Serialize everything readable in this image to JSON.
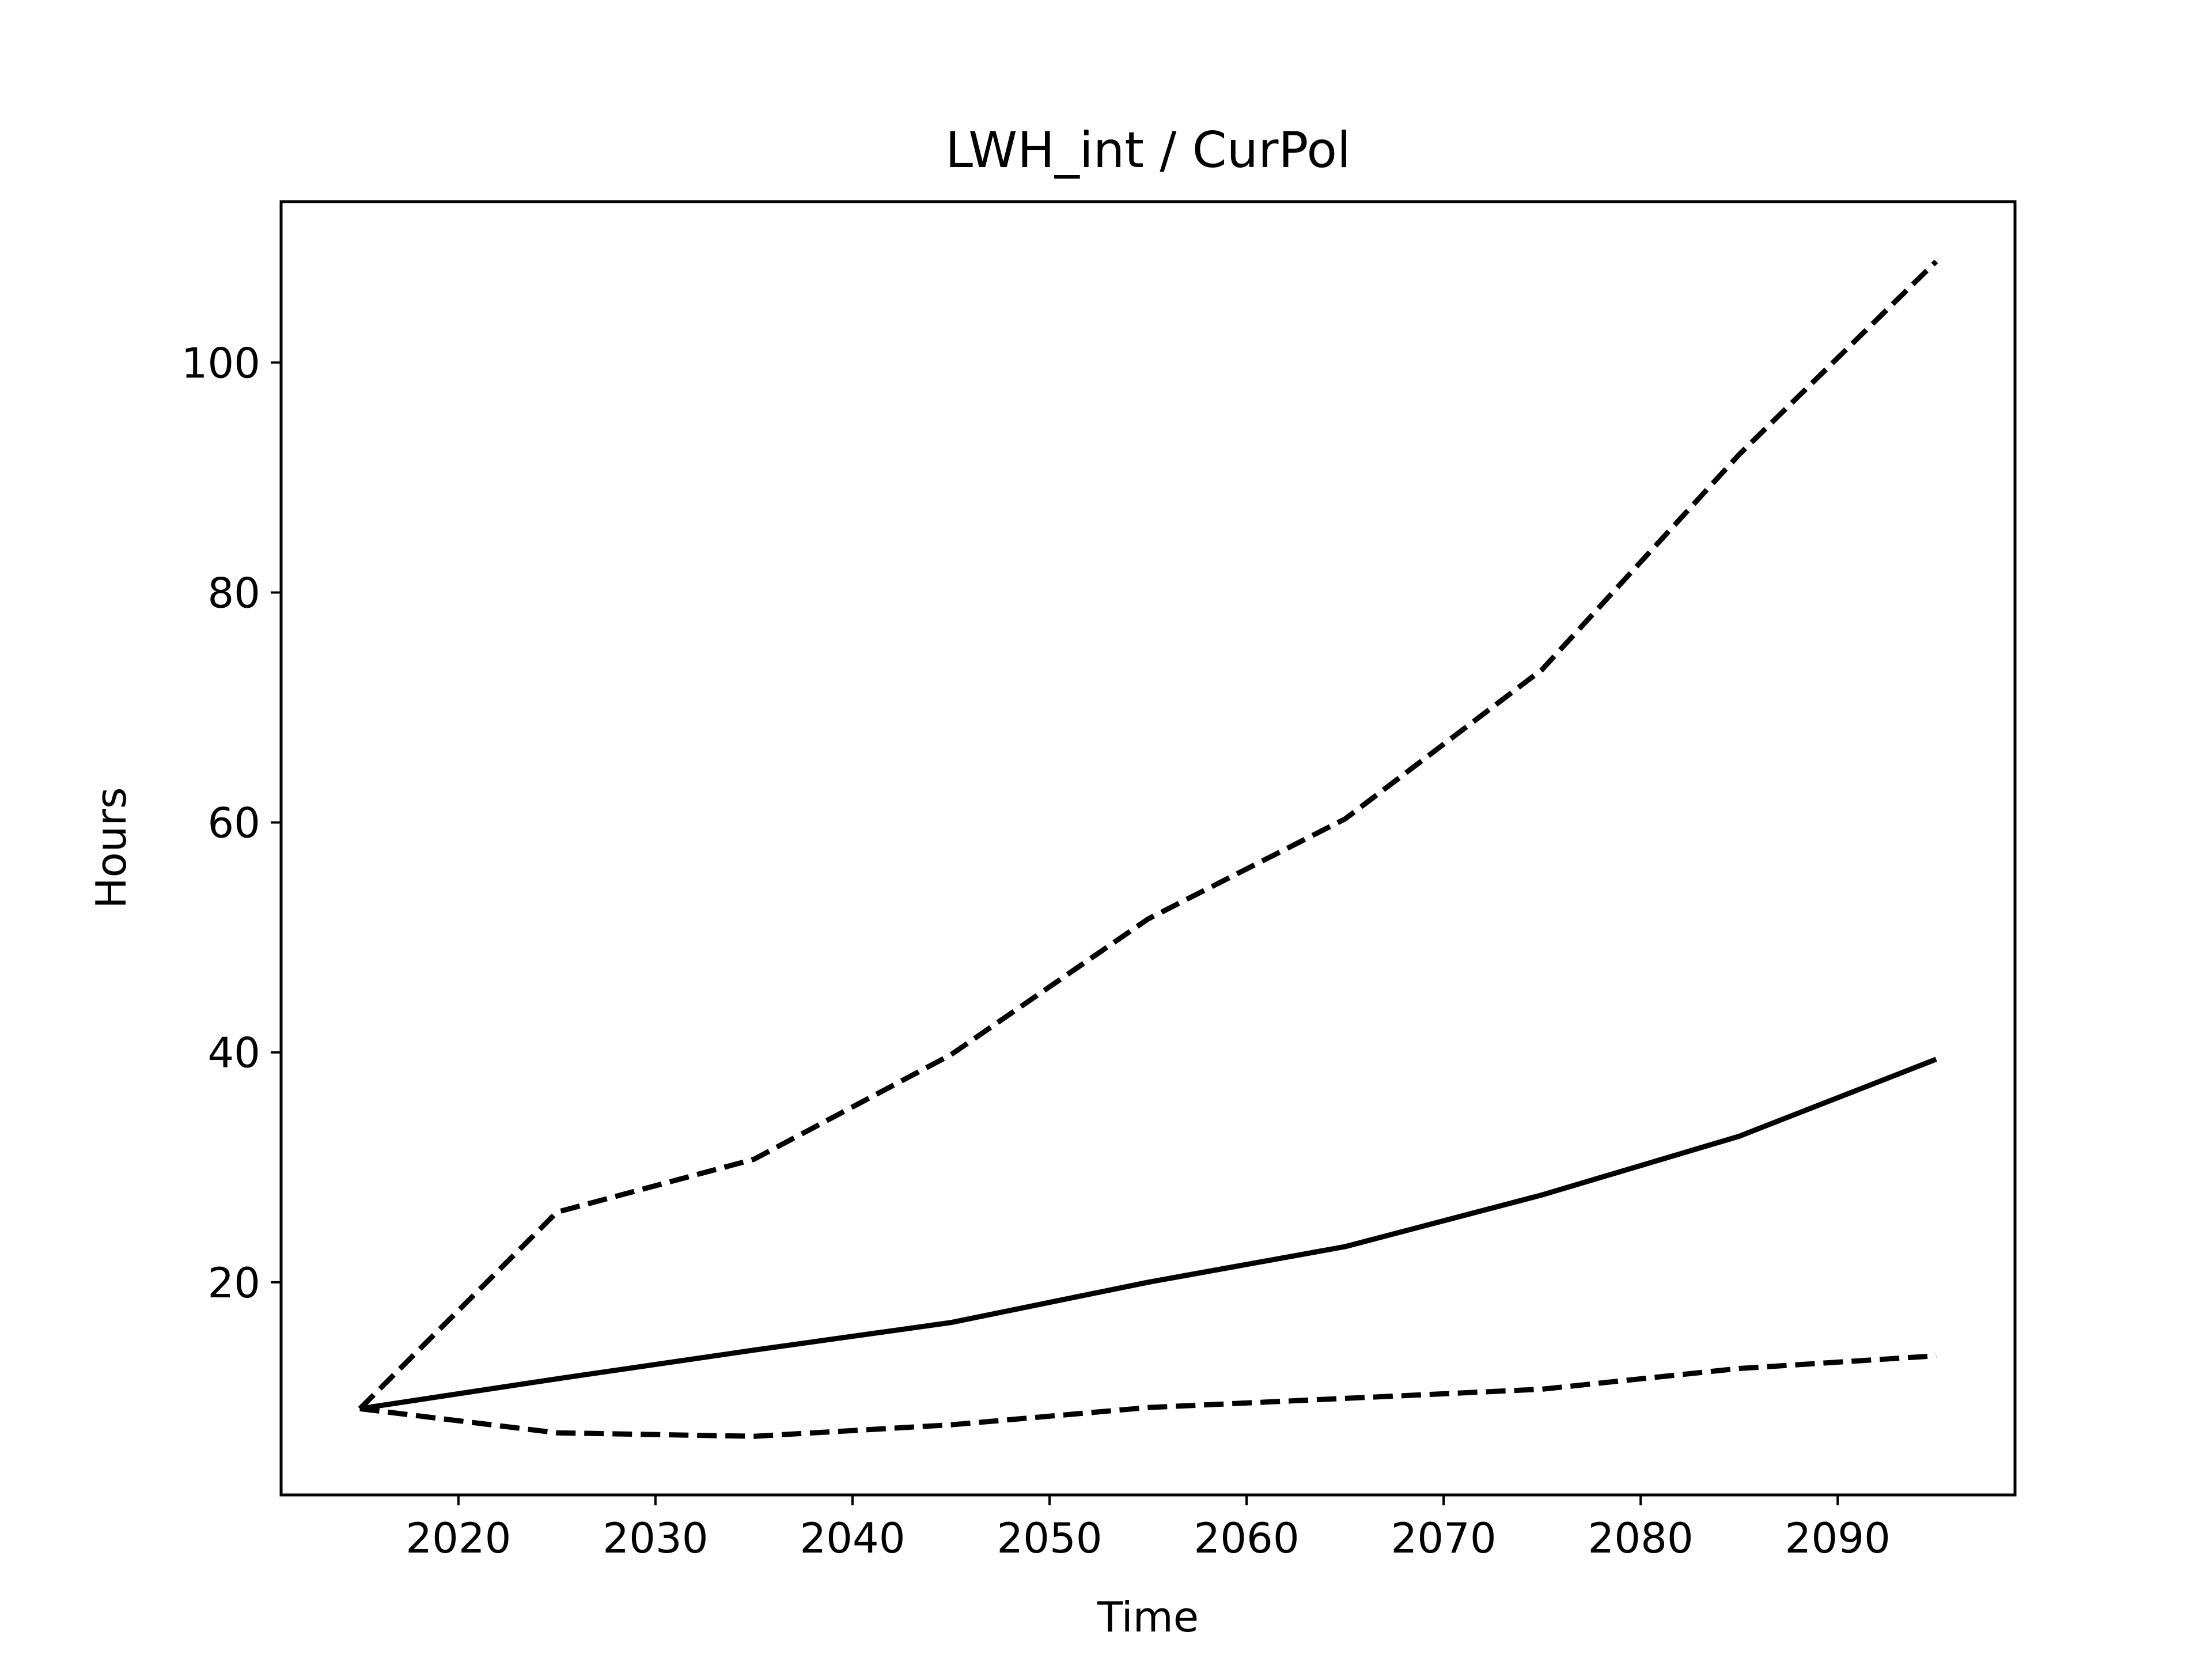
{
  "chart_data": {
    "type": "line",
    "title": "LWH_int / CurPol",
    "xlabel": "Time",
    "ylabel": "Hours",
    "xlim": [
      2011.0,
      2099.0
    ],
    "ylim": [
      1.5,
      114.0
    ],
    "xticks": [
      2020,
      2030,
      2040,
      2050,
      2060,
      2070,
      2080,
      2090
    ],
    "yticks": [
      20,
      40,
      60,
      80,
      100
    ],
    "grid": false,
    "legend": "none",
    "x": [
      2015,
      2025,
      2035,
      2045,
      2055,
      2065,
      2075,
      2085,
      2095
    ],
    "series": [
      {
        "style": "solid",
        "color": "#000000",
        "values": [
          9.0,
          11.6,
          14.1,
          16.5,
          20.0,
          23.1,
          27.6,
          32.7,
          39.4
        ]
      },
      {
        "style": "dashed",
        "color": "#000000",
        "values": [
          9.0,
          26.1,
          30.7,
          39.8,
          51.6,
          60.3,
          73.3,
          92.0,
          108.8
        ]
      },
      {
        "style": "dashed",
        "color": "#000000",
        "values": [
          9.0,
          6.9,
          6.6,
          7.6,
          9.1,
          9.9,
          10.7,
          12.5,
          13.6
        ]
      }
    ]
  }
}
